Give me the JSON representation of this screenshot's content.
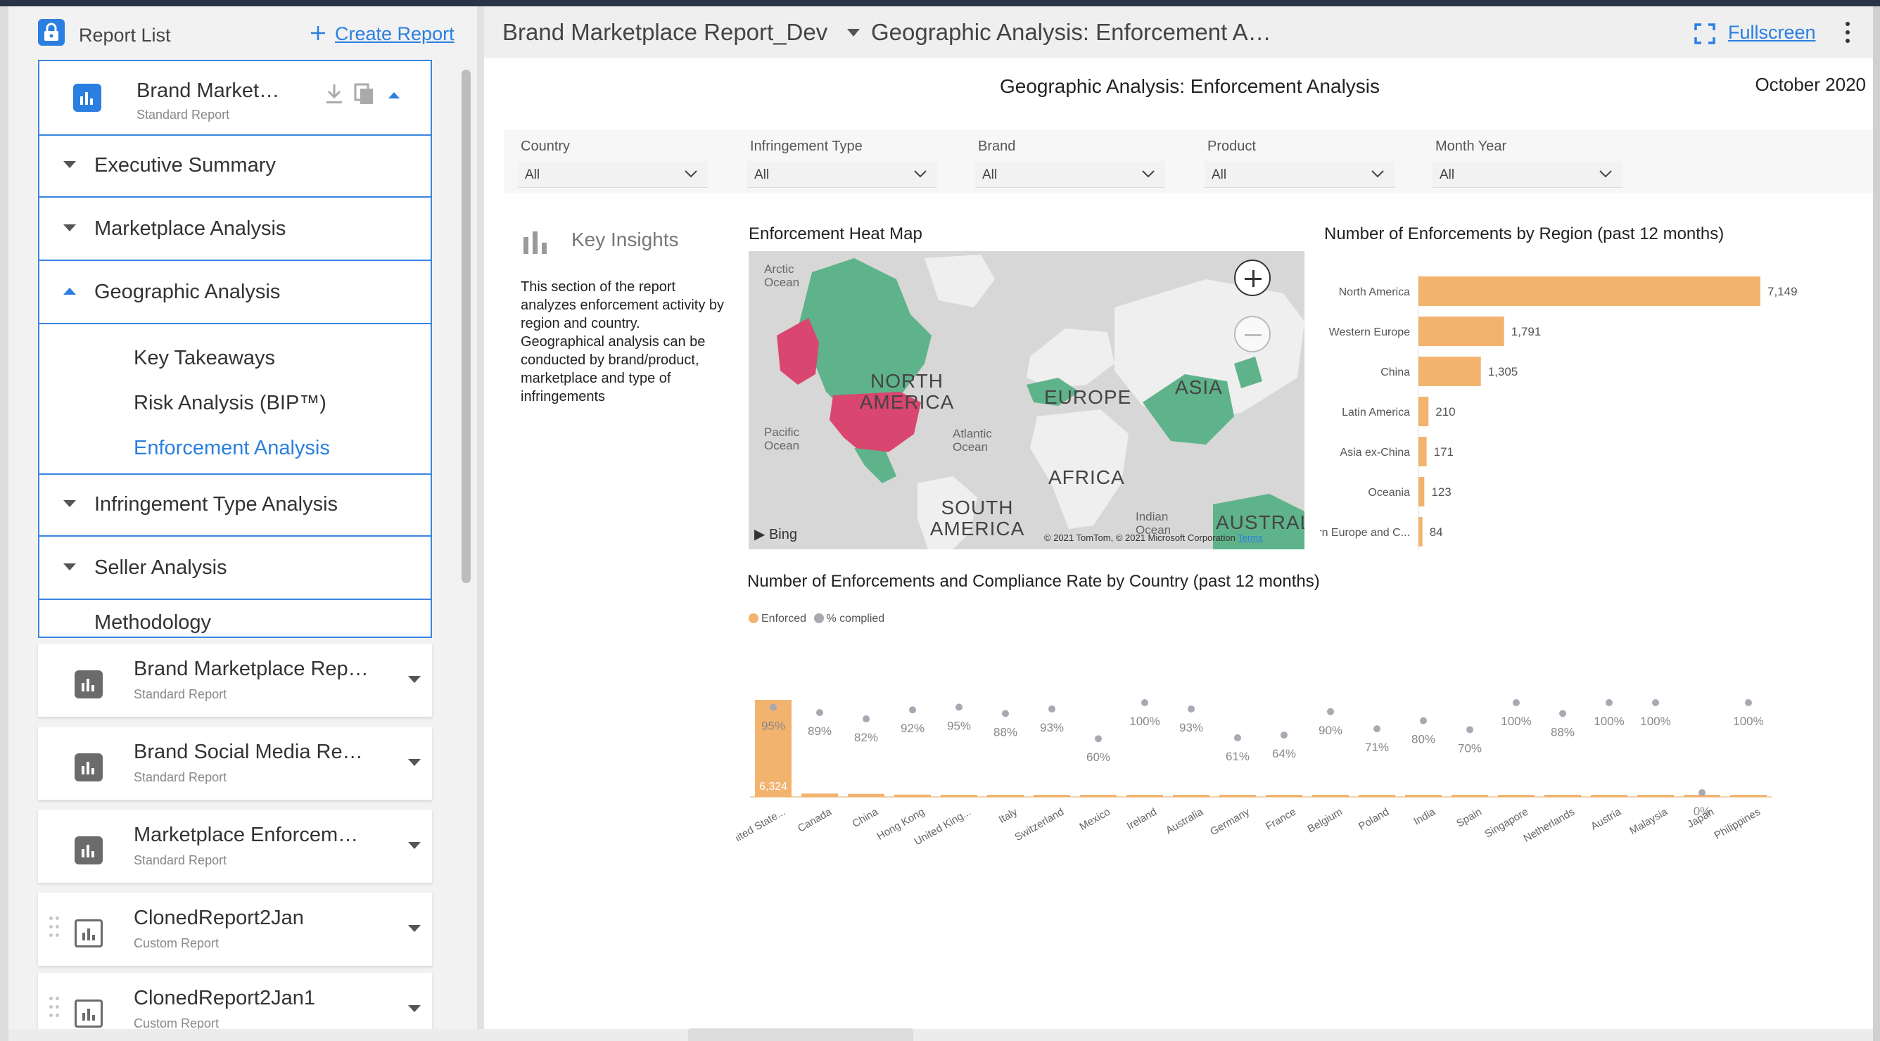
{
  "sidebar": {
    "title": "Report List",
    "create_label": "Create Report",
    "expanded_report": {
      "name": "Brand Market…",
      "type": "Standard Report",
      "sections": [
        {
          "label": "Executive Summary",
          "expanded": false
        },
        {
          "label": "Marketplace Analysis",
          "expanded": false
        },
        {
          "label": "Geographic Analysis",
          "expanded": true
        },
        {
          "label": "Infringement Type Analysis",
          "expanded": false
        },
        {
          "label": "Seller Analysis",
          "expanded": false
        },
        {
          "label": "Methodology",
          "expanded": false
        }
      ],
      "geo_pages": [
        "Key Takeaways",
        "Risk Analysis (BIP™)",
        "Enforcement Analysis"
      ]
    },
    "reports": [
      {
        "name": "Brand Marketplace Rep…",
        "type": "Standard Report",
        "icon": "report-chart-icon"
      },
      {
        "name": "Brand Social Media Re…",
        "type": "Standard Report",
        "icon": "report-chart-icon"
      },
      {
        "name": "Marketplace Enforcem…",
        "type": "Standard Report",
        "icon": "report-chart-icon"
      },
      {
        "name": "ClonedReport2Jan",
        "type": "Custom Report",
        "icon": "custom-report-icon"
      },
      {
        "name": "ClonedReport2Jan1",
        "type": "Custom Report",
        "icon": "custom-report-icon"
      }
    ]
  },
  "topbar": {
    "report_title": "Brand Marketplace Report_Dev",
    "page_title": "Geographic Analysis: Enforcement A…",
    "fullscreen_label": "Fullscreen"
  },
  "page": {
    "title": "Geographic Analysis: Enforcement Analysis",
    "date": "October 2020"
  },
  "filters": [
    {
      "label": "Country",
      "value": "All"
    },
    {
      "label": "Infringement Type",
      "value": "All"
    },
    {
      "label": "Brand",
      "value": "All"
    },
    {
      "label": "Product",
      "value": "All"
    },
    {
      "label": "Month Year",
      "value": "All"
    }
  ],
  "key_insights": {
    "title": "Key Insights",
    "text": "This section of the report analyzes enforcement activity by region and country. Geographical analysis can be conducted by brand/product, marketplace and type of infringements"
  },
  "map": {
    "title": "Enforcement Heat Map",
    "labels": {
      "arctic": "Arctic Ocean",
      "pacific": "Pacific Ocean",
      "atlantic": "Atlantic Ocean",
      "indian": "Indian Ocean",
      "north_america": "NORTH AMERICA",
      "south_america": "SOUTH AMERICA",
      "europe": "EUROPE",
      "asia": "ASIA",
      "africa": "AFRICA",
      "australia": "AUSTRAL"
    },
    "provider": "Bing",
    "copyright": "© 2021 TomTom, © 2021 Microsoft Corporation",
    "terms": "Terms",
    "colors": {
      "low": "#5fb38a",
      "high": "#d9466f",
      "land": "#f2f2f2",
      "water": "#d7d7d7"
    }
  },
  "region_chart": {
    "title": "Number of Enforcements by Region (past 12 months)",
    "bar_color": "#f2b36f"
  },
  "country_chart": {
    "title": "Number of Enforcements and Compliance Rate by Country (past 12 months)",
    "legend": [
      {
        "label": "Enforced",
        "color": "#f2b36f"
      },
      {
        "label": "% complied",
        "color": "#a9a9b3"
      }
    ]
  },
  "chart_data": [
    {
      "type": "bar",
      "orientation": "horizontal",
      "title": "Number of Enforcements by Region (past 12 months)",
      "categories": [
        "North America",
        "Western Europe",
        "China",
        "Latin America",
        "Asia ex-China",
        "Oceania",
        "Eastern Europe and C..."
      ],
      "values": [
        7149,
        1791,
        1305,
        210,
        171,
        123,
        84
      ],
      "value_labels": [
        "7,149",
        "1,791",
        "1,305",
        "210",
        "171",
        "123",
        "84"
      ]
    },
    {
      "type": "bar",
      "title": "Number of Enforcements and Compliance Rate by Country (past 12 months)",
      "categories": [
        "United State...",
        "Canada",
        "China",
        "Hong Kong",
        "United King...",
        "Italy",
        "Switzerland",
        "Mexico",
        "Ireland",
        "Australia",
        "Germany",
        "France",
        "Belgium",
        "Poland",
        "India",
        "Spain",
        "Singapore",
        "Netherlands",
        "Austria",
        "Malaysia",
        "Japan",
        "Philippines"
      ],
      "series": [
        {
          "name": "Enforced",
          "values": [
            6324,
            220,
            200,
            150,
            110,
            100,
            70,
            40,
            35,
            30,
            25,
            22,
            20,
            18,
            16,
            14,
            12,
            11,
            10,
            9,
            8,
            7
          ],
          "labels": [
            "6,324"
          ]
        },
        {
          "name": "% complied",
          "values": [
            95,
            89,
            82,
            92,
            95,
            88,
            93,
            60,
            100,
            93,
            61,
            64,
            90,
            71,
            80,
            70,
            100,
            88,
            100,
            100,
            0,
            100
          ],
          "labels": [
            "95%",
            "89%",
            "82%",
            "92%",
            "95%",
            "88%",
            "93%",
            "60%",
            "100%",
            "93%",
            "61%",
            "64%",
            "90%",
            "71%",
            "80%",
            "70%",
            "100%",
            "88%",
            "100%",
            "100%",
            "0%",
            "100%"
          ]
        }
      ]
    }
  ]
}
